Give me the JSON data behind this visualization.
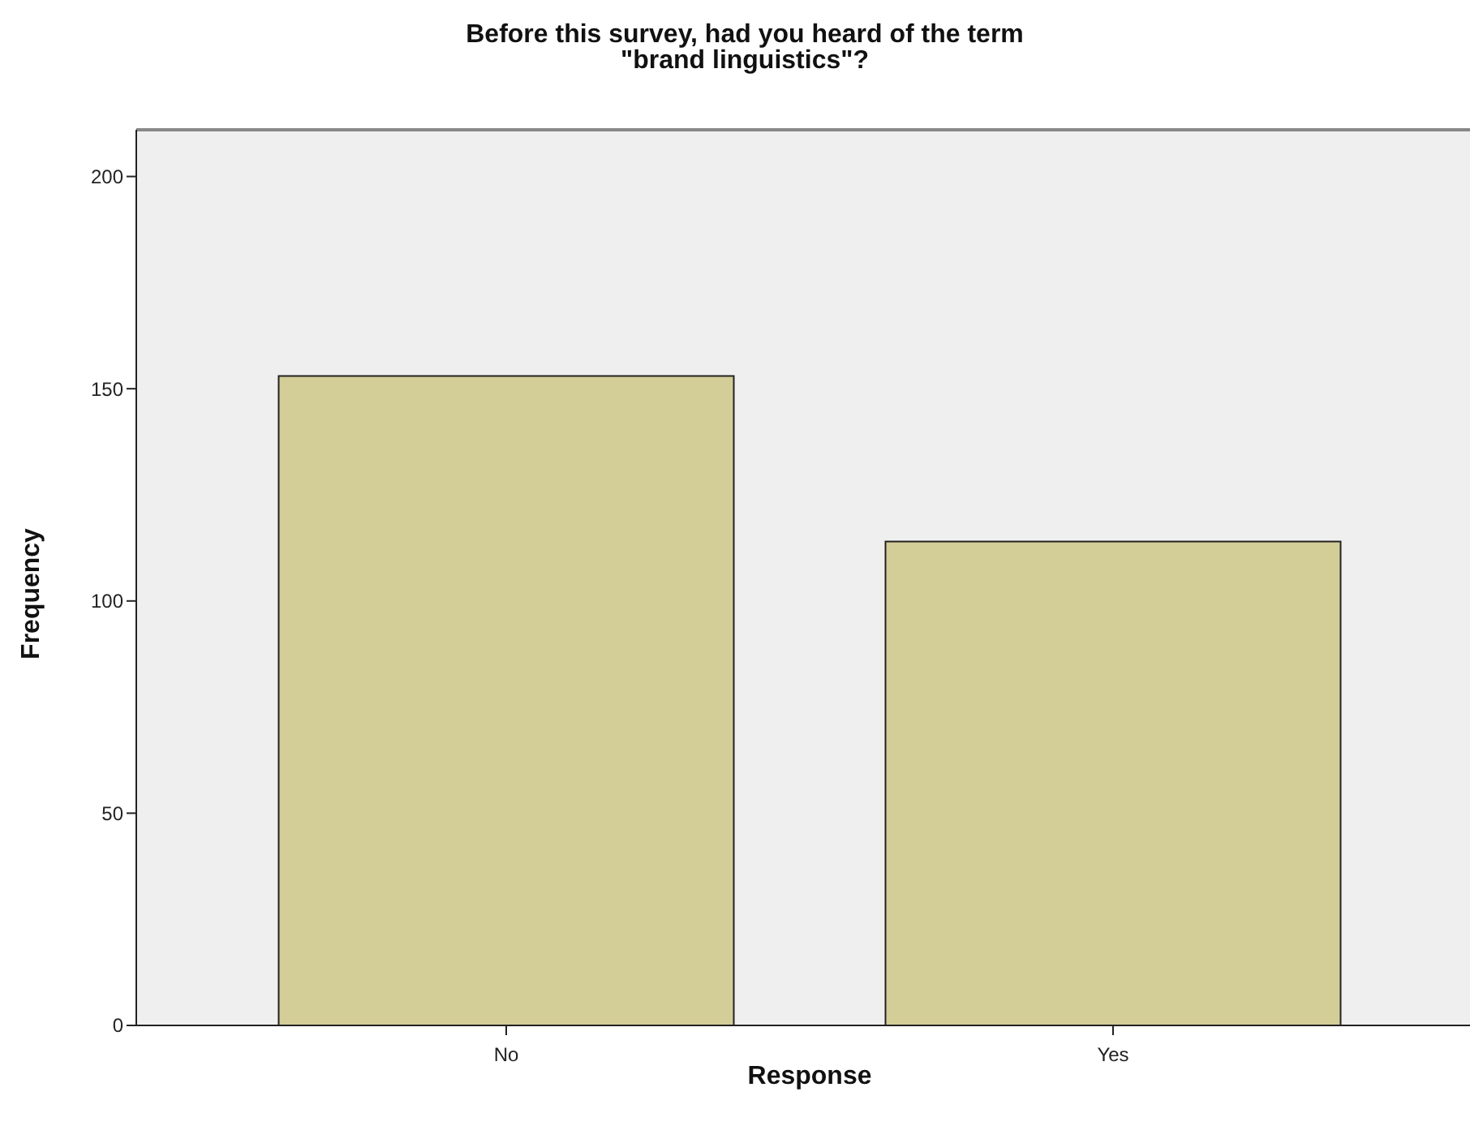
{
  "chart_data": {
    "type": "bar",
    "title": "Before this survey, had you heard of the term\n\"brand linguistics\"?",
    "xlabel": "Response",
    "ylabel": "Frequency",
    "categories": [
      "No",
      "Yes"
    ],
    "values": [
      153,
      114
    ],
    "color": "#d3cd98",
    "ylim": [
      0,
      211
    ],
    "yticks": [
      0,
      50,
      100,
      150,
      200
    ],
    "grid": false
  }
}
